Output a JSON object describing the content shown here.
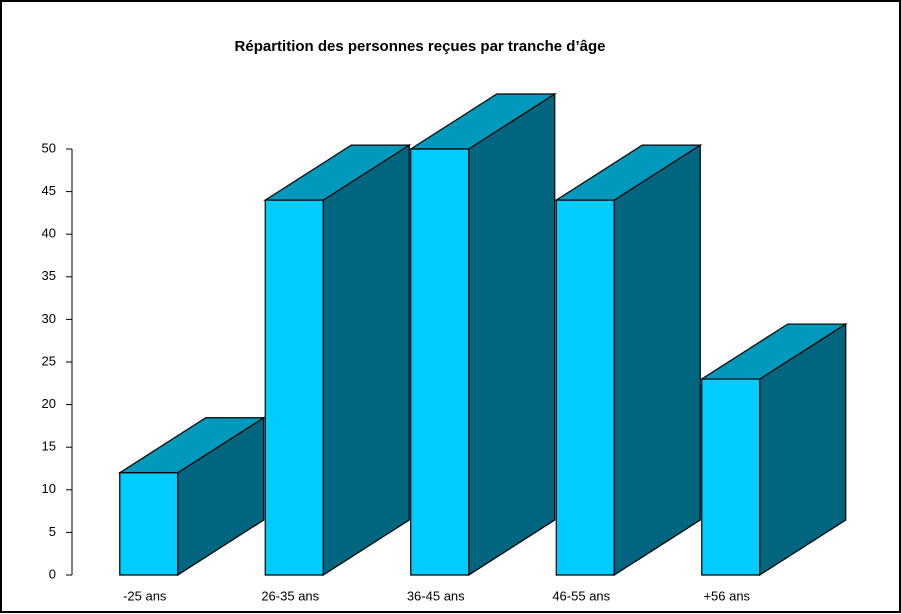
{
  "chart_data": {
    "type": "bar3d",
    "title": "Répartition des personnes reçues par tranche d’âge",
    "categories": [
      "-25 ans",
      "26-35 ans",
      "36-45 ans",
      "46-55 ans",
      "+56 ans"
    ],
    "values": [
      12,
      44,
      50,
      44,
      23
    ],
    "colors": {
      "front": "#00ccff",
      "top": "#0099bb",
      "side": "#006680"
    },
    "ylim": [
      0,
      50
    ],
    "yticks": [
      0,
      5,
      10,
      15,
      20,
      25,
      30,
      35,
      40,
      45,
      50
    ],
    "grid": false
  }
}
